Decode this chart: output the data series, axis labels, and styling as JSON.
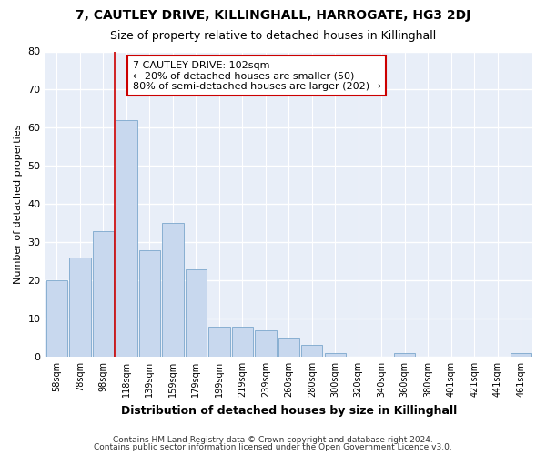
{
  "title": "7, CAUTLEY DRIVE, KILLINGHALL, HARROGATE, HG3 2DJ",
  "subtitle": "Size of property relative to detached houses in Killinghall",
  "xlabel": "Distribution of detached houses by size in Killinghall",
  "ylabel": "Number of detached properties",
  "categories": [
    "58sqm",
    "78sqm",
    "98sqm",
    "118sqm",
    "139sqm",
    "159sqm",
    "179sqm",
    "199sqm",
    "219sqm",
    "239sqm",
    "260sqm",
    "280sqm",
    "300sqm",
    "320sqm",
    "340sqm",
    "360sqm",
    "380sqm",
    "401sqm",
    "421sqm",
    "441sqm",
    "461sqm"
  ],
  "values": [
    20,
    26,
    33,
    62,
    28,
    35,
    23,
    8,
    8,
    7,
    5,
    3,
    1,
    0,
    0,
    1,
    0,
    0,
    0,
    0,
    1
  ],
  "bar_color": "#c8d8ee",
  "bar_edge_color": "#7ba7cc",
  "background_color": "#e8eef8",
  "fig_background": "#ffffff",
  "grid_color": "#ffffff",
  "red_line_x": 2.5,
  "annotation_line1": "7 CAUTLEY DRIVE: 102sqm",
  "annotation_line2": "← 20% of detached houses are smaller (50)",
  "annotation_line3": "80% of semi-detached houses are larger (202) →",
  "annotation_box_color": "#ffffff",
  "annotation_box_edge": "#cc0000",
  "footer1": "Contains HM Land Registry data © Crown copyright and database right 2024.",
  "footer2": "Contains public sector information licensed under the Open Government Licence v3.0.",
  "ylim": [
    0,
    80
  ],
  "yticks": [
    0,
    10,
    20,
    30,
    40,
    50,
    60,
    70,
    80
  ]
}
